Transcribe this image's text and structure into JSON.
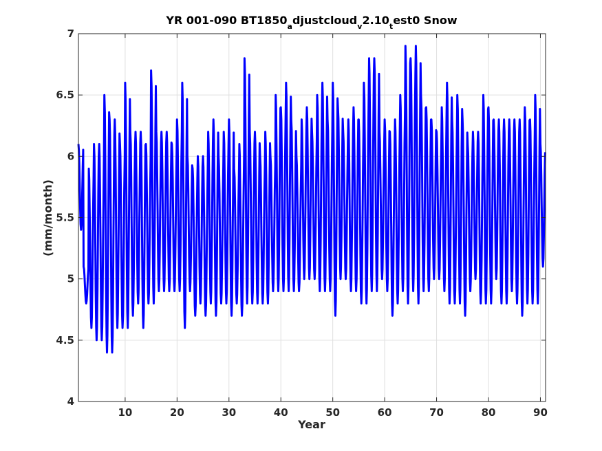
{
  "chart_data": {
    "type": "line",
    "title": {
      "parts": [
        {
          "text": "YR 001-090 BT1850",
          "sub": false
        },
        {
          "text": "a",
          "sub": true
        },
        {
          "text": "djustcloud",
          "sub": false
        },
        {
          "text": "v",
          "sub": true
        },
        {
          "text": "2.10",
          "sub": false
        },
        {
          "text": "t",
          "sub": true
        },
        {
          "text": "est0 Snow",
          "sub": false
        }
      ]
    },
    "xlabel": "Year",
    "ylabel": "(mm/month)",
    "xlim": [
      1,
      91
    ],
    "ylim": [
      4,
      7
    ],
    "xticks": [
      10,
      20,
      30,
      40,
      50,
      60,
      70,
      80,
      90
    ],
    "yticks": [
      4,
      4.5,
      5,
      5.5,
      6,
      6.5,
      7
    ],
    "ytick_labels": [
      "4",
      "4.5",
      "5",
      "5.5",
      "6",
      "6.5",
      "7"
    ],
    "grid": true,
    "series": [
      {
        "color": "#0000ff",
        "samples_per_year": 12,
        "x_start": 1,
        "annual_max": [
          6.1,
          5.1,
          5.9,
          6.1,
          6.1,
          6.5,
          6.3,
          6.3,
          6.1,
          6.6,
          6.2,
          6.2,
          6.2,
          6.1,
          6.7,
          6.2,
          6.2,
          6.2,
          6.1,
          6.3,
          6.6,
          6.0,
          5.9,
          6.0,
          6.0,
          6.2,
          6.3,
          6.0,
          6.2,
          6.3,
          5.9,
          6.1,
          6.8,
          6.2,
          6.2,
          6.0,
          6.2,
          6.0,
          6.5,
          6.4,
          6.6,
          6.3,
          6.0,
          6.3,
          6.4,
          6.2,
          6.5,
          6.6,
          6.3,
          6.6,
          6.4,
          6.2,
          6.3,
          6.4,
          6.3,
          6.6,
          6.8,
          6.8,
          6.2,
          6.3,
          6.2,
          6.3,
          6.5,
          6.9,
          6.8,
          6.9,
          6.5,
          6.4,
          6.3,
          6.2,
          6.4,
          6.6,
          6.3,
          6.5,
          6.3,
          6.1,
          6.2,
          6.2,
          6.5,
          6.4,
          6.3,
          6.3,
          6.3,
          6.3,
          6.3,
          6.3,
          6.4,
          6.3,
          6.5,
          6.1
        ],
        "annual_min": [
          5.4,
          4.8,
          4.6,
          4.5,
          4.5,
          4.4,
          4.4,
          4.6,
          4.6,
          4.6,
          4.7,
          4.8,
          4.6,
          4.8,
          4.8,
          4.9,
          4.9,
          4.9,
          4.9,
          4.9,
          4.6,
          4.9,
          4.7,
          4.8,
          4.7,
          4.8,
          4.7,
          4.8,
          4.8,
          4.7,
          4.8,
          4.7,
          4.8,
          4.8,
          4.8,
          4.8,
          4.8,
          4.9,
          4.9,
          4.9,
          4.9,
          4.9,
          4.9,
          5.0,
          5.0,
          5.0,
          4.9,
          4.9,
          4.9,
          4.7,
          5.0,
          5.0,
          4.9,
          4.9,
          4.8,
          4.8,
          4.9,
          4.9,
          5.0,
          4.9,
          4.7,
          4.8,
          4.9,
          4.8,
          4.9,
          4.8,
          4.9,
          4.9,
          5.0,
          5.0,
          4.9,
          4.8,
          4.8,
          4.8,
          4.7,
          4.9,
          5.0,
          4.8,
          4.8,
          4.8,
          5.0,
          4.8,
          4.8,
          4.9,
          4.8,
          4.7,
          4.8,
          4.8,
          4.8,
          5.1
        ]
      }
    ]
  }
}
